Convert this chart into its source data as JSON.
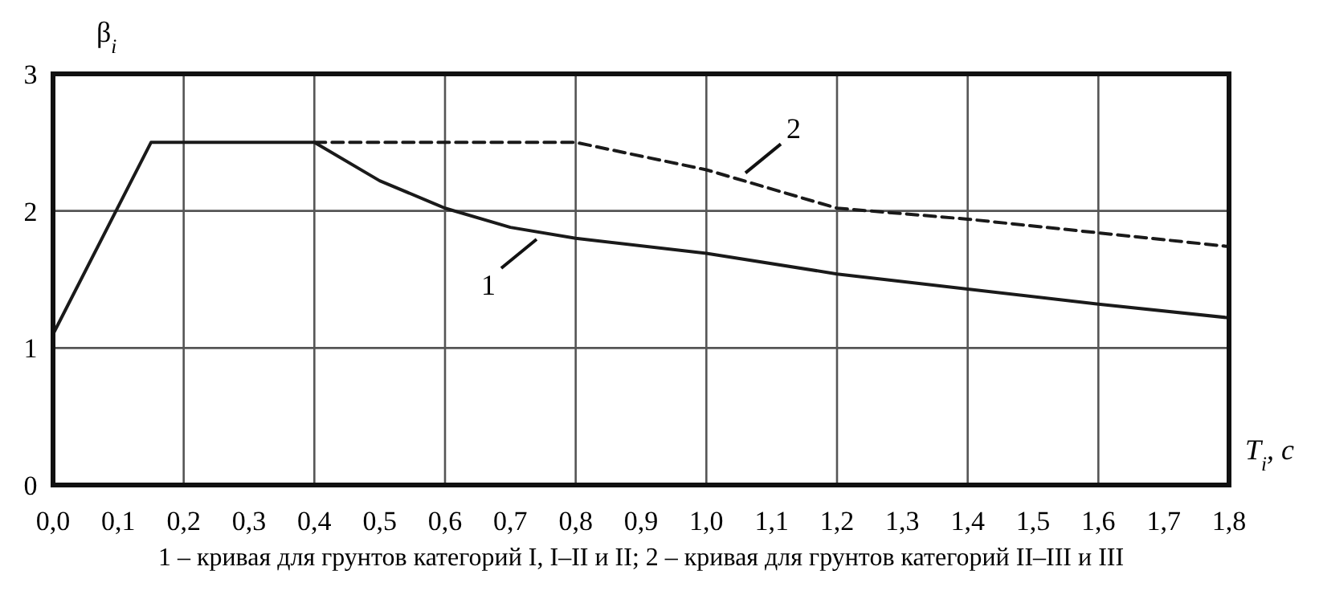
{
  "chart_data": {
    "type": "line",
    "ylabel": "β$_{i}$",
    "xlabel": "T$_{i}$, с",
    "xlim": [
      0,
      1.8
    ],
    "ylim": [
      0,
      3
    ],
    "xticks": [
      {
        "value": 0,
        "label": "0,0"
      },
      {
        "value": 0.1,
        "label": "0,1"
      },
      {
        "value": 0.2,
        "label": "0,2"
      },
      {
        "value": 0.3,
        "label": "0,3"
      },
      {
        "value": 0.4,
        "label": "0,4"
      },
      {
        "value": 0.5,
        "label": "0,5"
      },
      {
        "value": 0.6,
        "label": "0,6"
      },
      {
        "value": 0.7,
        "label": "0,7"
      },
      {
        "value": 0.8,
        "label": "0,8"
      },
      {
        "value": 0.9,
        "label": "0,9"
      },
      {
        "value": 1.0,
        "label": "1,0"
      },
      {
        "value": 1.1,
        "label": "1,1"
      },
      {
        "value": 1.2,
        "label": "1,2"
      },
      {
        "value": 1.3,
        "label": "1,3"
      },
      {
        "value": 1.4,
        "label": "1,4"
      },
      {
        "value": 1.5,
        "label": "1,5"
      },
      {
        "value": 1.6,
        "label": "1,6"
      },
      {
        "value": 1.7,
        "label": "1,7"
      },
      {
        "value": 1.8,
        "label": "1,8"
      }
    ],
    "yticks": [
      0,
      1,
      2,
      3
    ],
    "grid": true,
    "marker": "none",
    "series": [
      {
        "color": "#1a1a1a",
        "line_style": "solid",
        "x": [
          0,
          0.15,
          0.4,
          0.5,
          0.6,
          0.7,
          0.8,
          1.0,
          1.2,
          1.4,
          1.6,
          1.8
        ],
        "values": [
          1.1,
          2.5,
          2.5,
          2.22,
          2.02,
          1.88,
          1.8,
          1.69,
          1.54,
          1.43,
          1.32,
          1.22
        ]
      },
      {
        "color": "#1a1a1a",
        "line_style": "dashed",
        "x": [
          0.4,
          0.8,
          1.0,
          1.2,
          1.4,
          1.6,
          1.8
        ],
        "values": [
          2.5,
          2.5,
          2.3,
          2.02,
          1.94,
          1.84,
          1.74
        ]
      }
    ],
    "annotations": [
      {
        "text": "1",
        "x": 0.75,
        "y": 1.84
      },
      {
        "text": "2",
        "x": 1.05,
        "y": 2.23
      },
      "1 – кривая для грунтов категорий I, I–II и II; 2 – кривая для грунтов категорий II–III и III"
    ]
  }
}
